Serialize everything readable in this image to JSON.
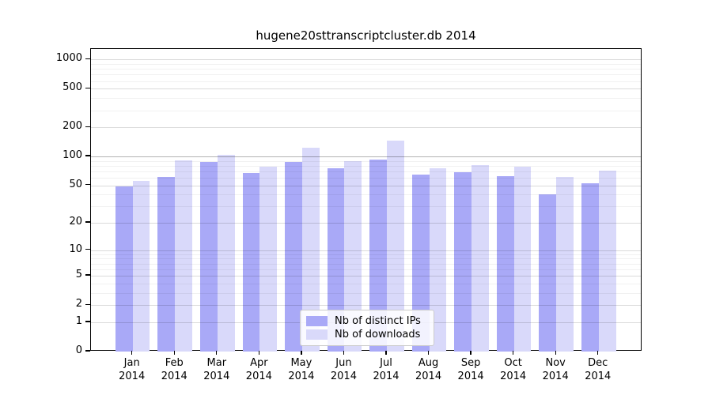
{
  "chart_data": {
    "type": "bar",
    "title": "hugene20sttranscriptcluster.db 2014",
    "categories": [
      "Jan",
      "Feb",
      "Mar",
      "Apr",
      "May",
      "Jun",
      "Jul",
      "Aug",
      "Sep",
      "Oct",
      "Nov",
      "Dec"
    ],
    "category_year": "2014",
    "series": [
      {
        "name": "Nb of distinct IPs",
        "color": "#a9a9f7",
        "values": [
          49,
          61,
          88,
          67,
          88,
          76,
          93,
          65,
          68,
          62,
          40,
          53
        ]
      },
      {
        "name": "Nb of downloads",
        "color": "#d9d9fa",
        "values": [
          56,
          92,
          105,
          79,
          123,
          90,
          145,
          76,
          81,
          78,
          61,
          71
        ]
      }
    ],
    "yticks": [
      0,
      1,
      2,
      5,
      10,
      20,
      50,
      100,
      200,
      500,
      1000
    ],
    "yscale": "log1p",
    "ylim": [
      0,
      1100
    ],
    "grid": "on",
    "legend_position": "lower-center",
    "axis_color": "#000000",
    "emphasized_gridline_value": 100
  }
}
